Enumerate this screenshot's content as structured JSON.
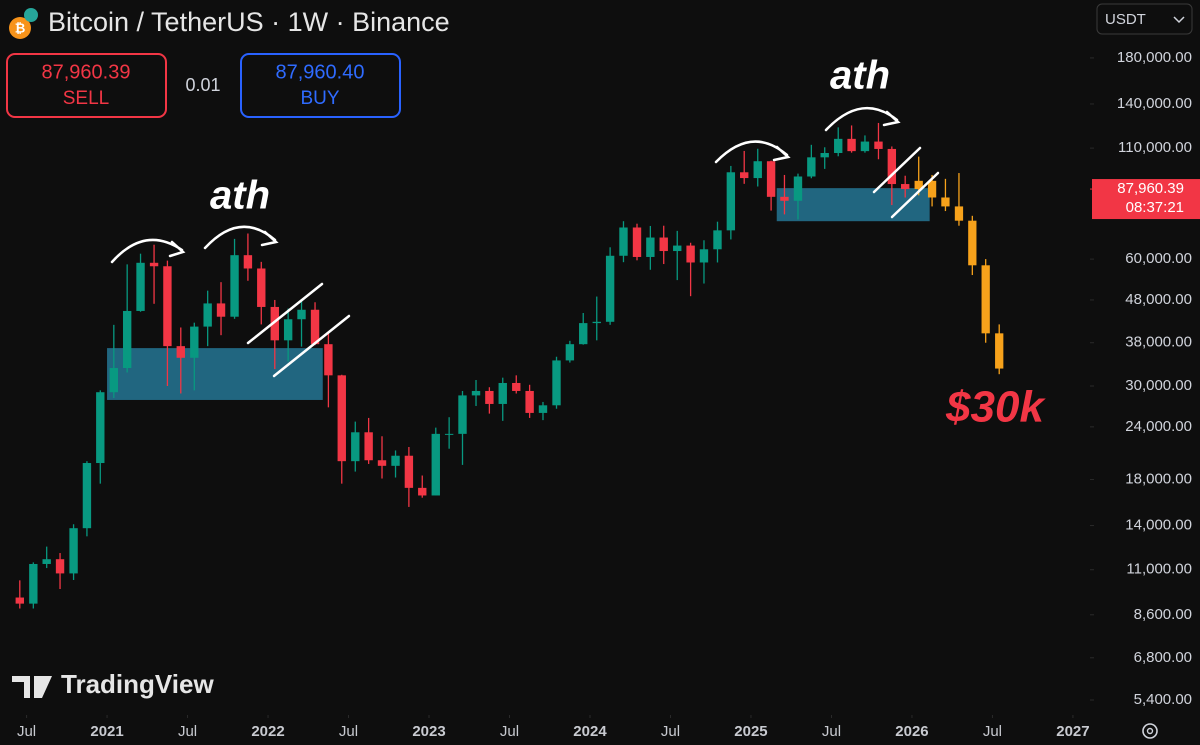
{
  "ui": {
    "title": "Bitcoin / TetherUS · 1W · Binance",
    "sell_price": "87,960.39",
    "sell_label": "SELL",
    "spread": "0.01",
    "buy_price": "87,960.40",
    "buy_label": "BUY",
    "currency": "USDT",
    "countdown": "08:37:21",
    "brand": "TradingView"
  },
  "chart_data": {
    "type": "candlestick",
    "log_scale": true,
    "ylim": [
      4975,
      247000
    ],
    "yticks": [
      {
        "value": 180000,
        "label": "180,000.00"
      },
      {
        "value": 140000,
        "label": "140,000.00"
      },
      {
        "value": 110000,
        "label": "110,000.00"
      },
      {
        "value": 60000,
        "label": "60,000.00"
      },
      {
        "value": 48000,
        "label": "48,000.00"
      },
      {
        "value": 38000,
        "label": "38,000.00"
      },
      {
        "value": 30000,
        "label": "30,000.00"
      },
      {
        "value": 24000,
        "label": "24,000.00"
      },
      {
        "value": 18000,
        "label": "18,000.00"
      },
      {
        "value": 14000,
        "label": "14,000.00"
      },
      {
        "value": 11000,
        "label": "11,000.00"
      },
      {
        "value": 8600,
        "label": "8,600.00"
      },
      {
        "value": 6800,
        "label": "6,800.00"
      },
      {
        "value": 5400,
        "label": "5,400.00"
      }
    ],
    "xlim": [
      2020.335,
      2027.106
    ],
    "xticks": [
      {
        "value": 2020.5,
        "label": "Jul"
      },
      2021,
      {
        "value": 2021.5,
        "label": "Jul"
      },
      2022,
      {
        "value": 2022.5,
        "label": "Jul"
      },
      2023,
      {
        "value": 2023.5,
        "label": "Jul"
      },
      2024,
      {
        "value": 2024.5,
        "label": "Jul"
      },
      2025,
      {
        "value": 2025.5,
        "label": "Jul"
      },
      2026,
      {
        "value": 2026.5,
        "label": "Jul"
      },
      2027
    ],
    "last_price": {
      "value": 87960.39,
      "label": "87,960.39"
    },
    "candles": {
      "up_color": "#089981",
      "down_color": "#f23645",
      "x": [
        2020.458,
        2020.542,
        2020.625,
        2020.708,
        2020.792,
        2020.875,
        2020.958,
        2021.042,
        2021.125,
        2021.208,
        2021.292,
        2021.375,
        2021.458,
        2021.542,
        2021.625,
        2021.708,
        2021.792,
        2021.875,
        2021.958,
        2022.042,
        2022.125,
        2022.208,
        2022.292,
        2022.375,
        2022.458,
        2022.542,
        2022.625,
        2022.708,
        2022.792,
        2022.875,
        2022.958,
        2023.042,
        2023.125,
        2023.208,
        2023.292,
        2023.375,
        2023.458,
        2023.542,
        2023.625,
        2023.708,
        2023.792,
        2023.875,
        2023.958,
        2024.042,
        2024.125,
        2024.208,
        2024.292,
        2024.375,
        2024.458,
        2024.542,
        2024.625,
        2024.708,
        2024.792,
        2024.875,
        2024.958,
        2025.042,
        2025.125,
        2025.208,
        2025.292,
        2025.375,
        2025.458,
        2025.542,
        2025.625,
        2025.708,
        2025.792,
        2025.875,
        2025.958
      ],
      "open": [
        9450,
        9140,
        11350,
        11650,
        10780,
        13800,
        19700,
        29000,
        33100,
        45200,
        58800,
        57700,
        37300,
        35000,
        41500,
        47100,
        43800,
        61300,
        57000,
        46200,
        38500,
        43200,
        45500,
        37700,
        31800,
        19900,
        23300,
        20000,
        19400,
        20500,
        17200,
        16500,
        23100,
        23100,
        28500,
        29200,
        27200,
        30500,
        29200,
        25900,
        27000,
        34500,
        37700,
        42300,
        42600,
        61100,
        71300,
        60700,
        67500,
        62700,
        64600,
        58900,
        63300,
        70200,
        96400,
        93400,
        102400,
        84300,
        82500,
        94200,
        104600,
        107100,
        115700,
        108200,
        114000,
        109500,
        90400
      ],
      "high": [
        10380,
        11450,
        12480,
        12050,
        14100,
        19900,
        29300,
        41900,
        58300,
        61800,
        64900,
        59500,
        41300,
        42400,
        50500,
        52900,
        67000,
        69000,
        59100,
        48000,
        45800,
        48200,
        47400,
        40000,
        31900,
        24700,
        25200,
        22800,
        21100,
        21500,
        18400,
        23900,
        25300,
        29200,
        31000,
        29800,
        31400,
        31800,
        30200,
        27500,
        35200,
        38400,
        44700,
        48900,
        64000,
        73800,
        72800,
        71900,
        72000,
        70000,
        65600,
        66500,
        73600,
        99800,
        108300,
        109600,
        102700,
        95000,
        95700,
        112000,
        110500,
        123200,
        124500,
        117900,
        126200,
        111000,
        94600
      ],
      "low": [
        8900,
        8900,
        11100,
        9900,
        10400,
        13200,
        17600,
        28100,
        32300,
        45000,
        47000,
        30000,
        28800,
        29300,
        37300,
        39600,
        43300,
        53300,
        42000,
        32900,
        34300,
        37200,
        37500,
        26700,
        17600,
        18800,
        19600,
        18100,
        18200,
        15500,
        16300,
        16500,
        21300,
        19500,
        26900,
        25800,
        24800,
        28800,
        25200,
        24900,
        26500,
        34100,
        37600,
        38500,
        41900,
        59000,
        59600,
        56600,
        58400,
        53500,
        49000,
        52500,
        58900,
        66800,
        90500,
        89200,
        78200,
        76600,
        74500,
        93300,
        98200,
        105200,
        107300,
        107300,
        103500,
        80600,
        84000
      ],
      "close": [
        9140,
        11350,
        11650,
        10780,
        13800,
        19700,
        29000,
        33100,
        45200,
        58800,
        57700,
        37300,
        35000,
        41500,
        47100,
        43800,
        61300,
        57000,
        46200,
        38500,
        43200,
        45500,
        37700,
        31800,
        19900,
        23300,
        20000,
        19400,
        20500,
        17200,
        16500,
        23100,
        23100,
        28500,
        29200,
        27200,
        30500,
        29200,
        25900,
        27000,
        34500,
        37700,
        42300,
        42600,
        61100,
        71300,
        60700,
        67500,
        62700,
        64600,
        58900,
        63300,
        70200,
        96400,
        93400,
        102400,
        84300,
        82500,
        94200,
        104600,
        107100,
        115700,
        108200,
        114000,
        109500,
        90400,
        87960
      ]
    },
    "projection": {
      "color": "#f7a21b",
      "x": [
        2026.042,
        2026.125,
        2026.208,
        2026.292,
        2026.375,
        2026.458,
        2026.542
      ],
      "open": [
        87960,
        92000,
        84000,
        80000,
        74000,
        58000,
        40000
      ],
      "high": [
        105000,
        95000,
        93000,
        96000,
        76000,
        60000,
        42000
      ],
      "low": [
        85000,
        80000,
        78000,
        72000,
        55000,
        38000,
        32000
      ],
      "close": [
        92000,
        84000,
        80000,
        74000,
        58000,
        40000,
        33000
      ]
    },
    "zones": {
      "color": "#2a8bb0",
      "items": [
        {
          "x": [
            2021.0,
            2022.34
          ],
          "y": [
            27800,
            36900
          ]
        },
        {
          "x": [
            2025.16,
            2026.11
          ],
          "y": [
            73800,
            88400
          ]
        }
      ]
    },
    "annotations": [
      "ath",
      "ath",
      "$30k"
    ]
  }
}
